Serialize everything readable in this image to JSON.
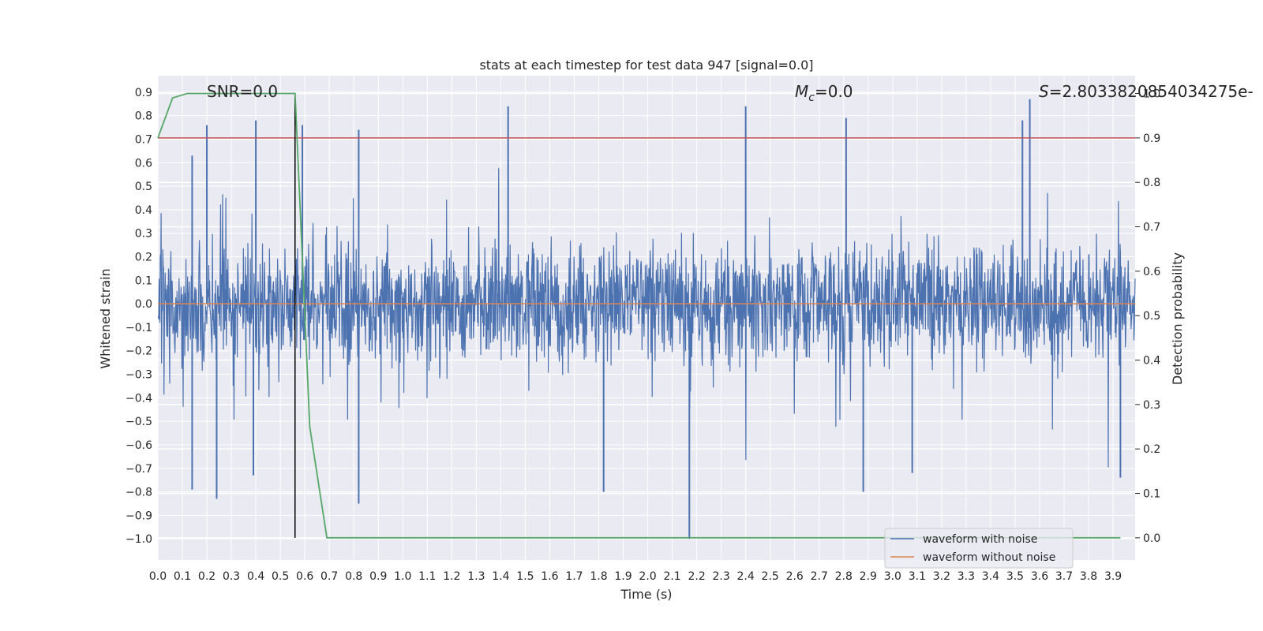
{
  "chart_data": {
    "type": "line",
    "title": "stats at each timestep for test data 947 [signal=0.0]",
    "xlabel": "Time (s)",
    "ylabel_left": "Whitened strain",
    "ylabel_right": "Detection probability",
    "xlim": [
      0.0,
      3.99
    ],
    "ylim_left": [
      -1.09,
      0.97
    ],
    "ylim_right": [
      -0.05,
      1.04
    ],
    "x_ticks": [
      "0.0",
      "0.1",
      "0.2",
      "0.3",
      "0.4",
      "0.5",
      "0.6",
      "0.7",
      "0.8",
      "0.9",
      "1.0",
      "1.1",
      "1.2",
      "1.3",
      "1.4",
      "1.5",
      "1.6",
      "1.7",
      "1.8",
      "1.9",
      "2.0",
      "2.1",
      "2.2",
      "2.3",
      "2.4",
      "2.5",
      "2.6",
      "2.7",
      "2.8",
      "2.9",
      "3.0",
      "3.1",
      "3.2",
      "3.3",
      "3.4",
      "3.5",
      "3.6",
      "3.7",
      "3.8",
      "3.9"
    ],
    "y_ticks_left": [
      "0.9",
      "0.8",
      "0.7",
      "0.6",
      "0.5",
      "0.4",
      "0.3",
      "0.2",
      "0.1",
      "0.0",
      "-0.1",
      "-0.2",
      "-0.3",
      "-0.4",
      "-0.5",
      "-0.6",
      "-0.7",
      "-0.8",
      "-0.9",
      "-1.0"
    ],
    "y_ticks_right": [
      "1.0",
      "0.9",
      "0.8",
      "0.7",
      "0.6",
      "0.5",
      "0.4",
      "0.3",
      "0.2",
      "0.1",
      "0.0"
    ],
    "grid": true,
    "legend_position": "lower-right",
    "annotations": {
      "snr": "SNR=0.0",
      "mc_symbol": "M",
      "mc_sub": "c",
      "mc_value": "=0.0",
      "s_symbol": "S",
      "s_value": "=2.8033820854034275e-"
    },
    "series": [
      {
        "name": "waveform with noise",
        "color": "#4c72b0",
        "axis": "left",
        "description_range": [
          -1.0,
          0.87
        ],
        "spikes": [
          {
            "x": 0.14,
            "y": 0.63
          },
          {
            "x": 0.2,
            "y": 0.76
          },
          {
            "x": 0.4,
            "y": 0.78
          },
          {
            "x": 0.59,
            "y": 0.76
          },
          {
            "x": 0.82,
            "y": 0.74
          },
          {
            "x": 1.43,
            "y": 0.84
          },
          {
            "x": 2.4,
            "y": 0.84
          },
          {
            "x": 2.81,
            "y": 0.79
          },
          {
            "x": 3.53,
            "y": 0.78
          },
          {
            "x": 3.56,
            "y": 0.87
          },
          {
            "x": 0.14,
            "y": -0.79
          },
          {
            "x": 0.24,
            "y": -0.83
          },
          {
            "x": 0.39,
            "y": -0.73
          },
          {
            "x": 0.82,
            "y": -0.85
          },
          {
            "x": 1.82,
            "y": -0.8
          },
          {
            "x": 2.17,
            "y": -1.0
          },
          {
            "x": 2.88,
            "y": -0.8
          },
          {
            "x": 3.08,
            "y": -0.72
          },
          {
            "x": 3.93,
            "y": -0.74
          }
        ]
      },
      {
        "name": "waveform without noise",
        "color": "#dd8452",
        "axis": "left",
        "x": [
          0.0,
          3.99
        ],
        "y": [
          0.0,
          0.0
        ]
      },
      {
        "name": "detection probability",
        "color": "#55a868",
        "axis": "right",
        "x": [
          0.0,
          0.06,
          0.12,
          0.56,
          0.62,
          0.69,
          3.93
        ],
        "y": [
          0.9,
          0.99,
          1.0,
          1.0,
          0.25,
          0.0,
          0.0
        ]
      }
    ],
    "threshold_line": {
      "value": 0.9,
      "axis": "right",
      "color": "#c44e52"
    },
    "marker_line": {
      "x": 0.56,
      "color": "#000000"
    }
  }
}
